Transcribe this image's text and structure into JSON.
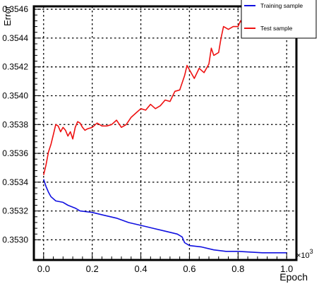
{
  "chart_data": {
    "type": "line",
    "title": "",
    "xlabel": "Epoch",
    "ylabel": "Error",
    "x_multiplier_label": "×10",
    "x_multiplier_exponent": "3",
    "xlim": [
      -0.04,
      1.04
    ],
    "ylim": [
      0.35286,
      0.35462
    ],
    "x_ticks": [
      0.0,
      0.2,
      0.4,
      0.6,
      0.8,
      1.0
    ],
    "x_tick_labels": [
      "0.0",
      "0.2",
      "0.4",
      "0.6",
      "0.8",
      "1.0"
    ],
    "y_ticks": [
      0.353,
      0.3532,
      0.3534,
      0.3536,
      0.3538,
      0.354,
      0.3542,
      0.3544,
      0.3546
    ],
    "y_tick_labels": [
      "0.3530",
      "0.3532",
      "0.3534",
      "0.3536",
      "0.3538",
      "0.3540",
      "0.3542",
      "0.3544",
      "0.3546"
    ],
    "grid": true,
    "legend_position": "top-right",
    "series": [
      {
        "name": "Training sample",
        "color": "#1010e0",
        "x": [
          0.0,
          0.01,
          0.02,
          0.03,
          0.05,
          0.08,
          0.1,
          0.13,
          0.15,
          0.2,
          0.25,
          0.3,
          0.35,
          0.4,
          0.45,
          0.5,
          0.55,
          0.57,
          0.58,
          0.6,
          0.65,
          0.7,
          0.75,
          0.8,
          0.9,
          1.0
        ],
        "y": [
          0.35342,
          0.35337,
          0.35333,
          0.3533,
          0.35327,
          0.35326,
          0.35324,
          0.35322,
          0.3532,
          0.35319,
          0.35317,
          0.35315,
          0.35312,
          0.3531,
          0.35308,
          0.35306,
          0.35304,
          0.35302,
          0.35298,
          0.35296,
          0.35295,
          0.35293,
          0.35292,
          0.35292,
          0.35291,
          0.35291
        ]
      },
      {
        "name": "Test sample",
        "color": "#ee1111",
        "x": [
          0.0,
          0.01,
          0.02,
          0.03,
          0.04,
          0.05,
          0.06,
          0.07,
          0.08,
          0.09,
          0.1,
          0.11,
          0.12,
          0.13,
          0.14,
          0.15,
          0.16,
          0.17,
          0.18,
          0.2,
          0.22,
          0.24,
          0.26,
          0.28,
          0.3,
          0.32,
          0.34,
          0.36,
          0.38,
          0.4,
          0.42,
          0.44,
          0.46,
          0.48,
          0.5,
          0.52,
          0.54,
          0.56,
          0.58,
          0.59,
          0.6,
          0.62,
          0.64,
          0.66,
          0.68,
          0.69,
          0.7,
          0.72,
          0.73,
          0.74,
          0.76,
          0.78,
          0.8,
          0.81,
          0.82
        ],
        "y": [
          0.35345,
          0.35352,
          0.35361,
          0.35366,
          0.35373,
          0.3538,
          0.35379,
          0.35375,
          0.35378,
          0.35376,
          0.35372,
          0.35375,
          0.3537,
          0.35378,
          0.35382,
          0.35381,
          0.35378,
          0.35376,
          0.35377,
          0.35378,
          0.35381,
          0.35379,
          0.35379,
          0.3538,
          0.35383,
          0.35378,
          0.3538,
          0.35385,
          0.35388,
          0.35391,
          0.3539,
          0.35394,
          0.35391,
          0.35393,
          0.35397,
          0.35396,
          0.35403,
          0.35404,
          0.35414,
          0.35421,
          0.35418,
          0.35412,
          0.35419,
          0.35416,
          0.35422,
          0.35433,
          0.35428,
          0.3543,
          0.3544,
          0.35448,
          0.35446,
          0.35448,
          0.35448,
          0.35452,
          0.35449
        ]
      }
    ]
  }
}
